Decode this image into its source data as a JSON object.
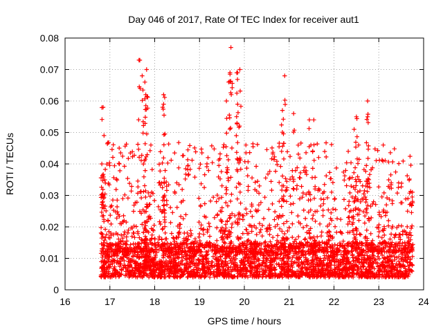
{
  "chart_data": {
    "type": "scatter",
    "title": "Day 046 of 2017, Rate Of TEC Index for receiver aut1",
    "xlabel": "GPS time / hours",
    "ylabel": "ROTI / TECUs",
    "xlim": [
      16,
      24
    ],
    "ylim": [
      0,
      0.08
    ],
    "x_ticks": [
      16,
      17,
      18,
      19,
      20,
      21,
      22,
      23,
      24
    ],
    "y_ticks": [
      0,
      0.01,
      0.02,
      0.03,
      0.04,
      0.05,
      0.06,
      0.07,
      0.08
    ],
    "x_tick_labels": [
      "16",
      "17",
      "18",
      "19",
      "20",
      "21",
      "22",
      "23",
      "24"
    ],
    "y_tick_labels": [
      "0",
      "0.01",
      "0.02",
      "0.03",
      "0.04",
      "0.05",
      "0.06",
      "0.07",
      "0.08"
    ],
    "grid": true,
    "marker": "+",
    "color": "#ff0000",
    "x_range_observed": [
      16.8,
      23.75
    ],
    "series": [
      {
        "name": "ROTI",
        "notable_points": [
          {
            "x": 16.85,
            "y": 0.058
          },
          {
            "x": 16.87,
            "y": 0.049
          },
          {
            "x": 16.82,
            "y": 0.04
          },
          {
            "x": 17.65,
            "y": 0.073
          },
          {
            "x": 17.82,
            "y": 0.07
          },
          {
            "x": 17.78,
            "y": 0.066
          },
          {
            "x": 17.72,
            "y": 0.068
          },
          {
            "x": 17.8,
            "y": 0.062
          },
          {
            "x": 18.2,
            "y": 0.062
          },
          {
            "x": 18.2,
            "y": 0.059
          },
          {
            "x": 19.7,
            "y": 0.077
          },
          {
            "x": 19.68,
            "y": 0.069
          },
          {
            "x": 19.65,
            "y": 0.066
          },
          {
            "x": 19.9,
            "y": 0.07
          },
          {
            "x": 19.85,
            "y": 0.069
          },
          {
            "x": 19.6,
            "y": 0.06
          },
          {
            "x": 19.85,
            "y": 0.059
          },
          {
            "x": 20.9,
            "y": 0.068
          },
          {
            "x": 20.85,
            "y": 0.057
          },
          {
            "x": 21.1,
            "y": 0.056
          },
          {
            "x": 21.55,
            "y": 0.054
          },
          {
            "x": 21.45,
            "y": 0.054
          },
          {
            "x": 22.75,
            "y": 0.06
          },
          {
            "x": 22.75,
            "y": 0.055
          },
          {
            "x": 22.5,
            "y": 0.055
          },
          {
            "x": 22.45,
            "y": 0.051
          },
          {
            "x": 23.1,
            "y": 0.046
          },
          {
            "x": 22.55,
            "y": 0.046
          },
          {
            "x": 23.75,
            "y": 0.031
          },
          {
            "x": 22.75,
            "y": 0.004
          }
        ],
        "baseline_range": [
          0.004,
          0.015
        ],
        "typical_spike_range": [
          0.02,
          0.045
        ]
      }
    ]
  }
}
